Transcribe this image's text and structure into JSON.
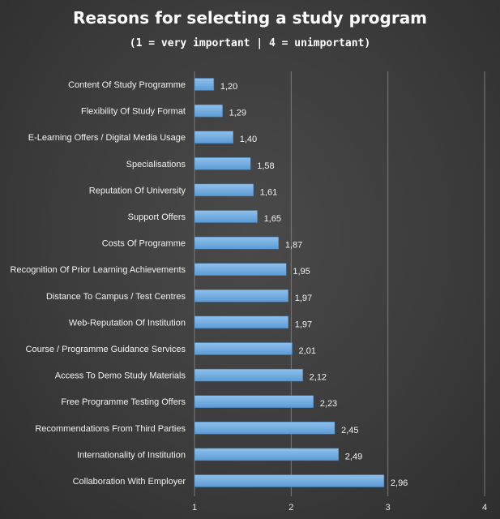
{
  "title": "Reasons for selecting a study program",
  "subtitle": "(1 = very important | 4 = unimportant)",
  "colors": {
    "bar_fill": "#5b9bd5",
    "bar_highlight": "#8fc0ec",
    "grid": "#7a7a7a",
    "text": "#f2f2f2"
  },
  "chart_data": {
    "type": "bar",
    "orientation": "horizontal",
    "categories": [
      "Content Of Study Programme",
      "Flexibility Of Study Format",
      "E-Learning Offers / Digital Media Usage",
      "Specialisations",
      "Reputation Of University",
      "Support Offers",
      "Costs Of Programme",
      "Recognition Of Prior Learning Achievements",
      "Distance To Campus / Test Centres",
      "Web-Reputation Of Institution",
      "Course / Programme Guidance Services",
      "Access To Demo Study Materials",
      "Free Programme Testing Offers",
      "Recommendations From Third Parties",
      "Internationality of Institution",
      "Collaboration With Employer"
    ],
    "values": [
      1.2,
      1.29,
      1.4,
      1.58,
      1.61,
      1.65,
      1.87,
      1.95,
      1.97,
      1.97,
      2.01,
      2.12,
      2.23,
      2.45,
      2.49,
      2.96
    ],
    "value_labels": [
      "1,20",
      "1,29",
      "1,40",
      "1,58",
      "1,61",
      "1,65",
      "1,87",
      "1,95",
      "1,97",
      "1,97",
      "2,01",
      "2,12",
      "2,23",
      "2,45",
      "2,49",
      "2,96"
    ],
    "xlim": [
      1,
      4
    ],
    "x_ticks": [
      "1",
      "2",
      "3",
      "4"
    ],
    "grid": true
  }
}
